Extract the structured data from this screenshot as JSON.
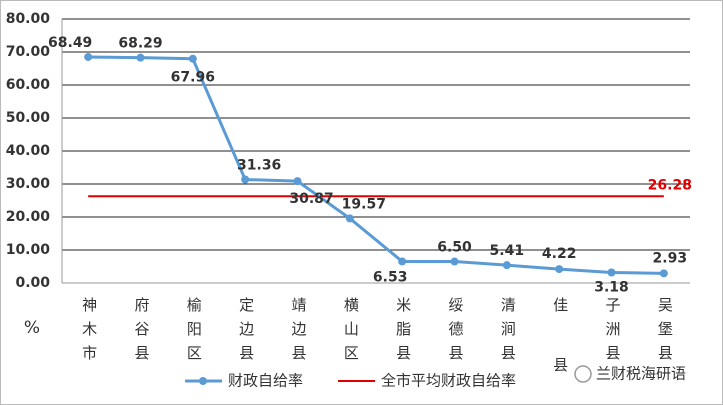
{
  "chart_data": {
    "type": "line",
    "y_label": "%",
    "categories": [
      "神木市",
      "府谷县",
      "榆阳区",
      "定边县",
      "靖边县",
      "横山区",
      "米脂县",
      "绥德县",
      "清涧县",
      "佳县",
      "子洲县",
      "吴堡县"
    ],
    "series": [
      {
        "name": "财政自给率",
        "color": "#5b9bd5",
        "values": [
          68.49,
          68.29,
          67.96,
          31.36,
          30.87,
          19.57,
          6.53,
          6.5,
          5.41,
          4.22,
          3.18,
          2.93
        ],
        "value_labels": [
          "68.49",
          "68.29",
          "67.96",
          "31.36",
          "30.87",
          "19.57",
          "6.53",
          "6.50",
          "5.41",
          "4.22",
          "3.18",
          "2.93"
        ]
      }
    ],
    "average": {
      "name": "全市平均财政自给率",
      "color": "#e00000",
      "value": 26.28,
      "value_label": "26.28"
    },
    "ylim": [
      0,
      80
    ],
    "yticks": [
      {
        "value": 0,
        "label": "0.00"
      },
      {
        "value": 10,
        "label": "10.00"
      },
      {
        "value": 20,
        "label": "20.00"
      },
      {
        "value": 30,
        "label": "30.00"
      },
      {
        "value": 40,
        "label": "40.00"
      },
      {
        "value": 50,
        "label": "50.00"
      },
      {
        "value": 60,
        "label": "60.00"
      },
      {
        "value": 70,
        "label": "70.00"
      },
      {
        "value": 80,
        "label": "80.00"
      }
    ],
    "grid": true,
    "watermark": "兰财税海研语"
  }
}
